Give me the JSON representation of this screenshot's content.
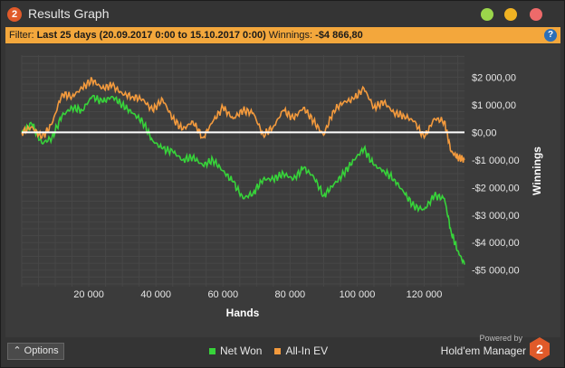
{
  "window": {
    "icon_text": "2",
    "title": "Results Graph"
  },
  "filter": {
    "label": "Filter:",
    "range": "Last 25 days (20.09.2017 0:00 to 15.10.2017 0:00)",
    "winnings_label": "Winnings:",
    "winnings_value": "-$4 866,80",
    "help_icon": "?"
  },
  "options_label": "Options",
  "powered_by": "Powered by",
  "brand": "Hold'em Manager",
  "brand_logo_text": "2",
  "colors": {
    "net_won": "#37d33a",
    "all_in_ev": "#f39a3d",
    "zero_line": "#ffffff",
    "grid": "#4e4e4e",
    "title_icon": "#e05a2a"
  },
  "chart_data": {
    "type": "line",
    "xlabel": "Hands",
    "ylabel": "Winnings",
    "x_ticks": [
      20000,
      40000,
      60000,
      80000,
      100000,
      120000
    ],
    "x_tick_labels": [
      "20 000",
      "40 000",
      "60 000",
      "80 000",
      "100 000",
      "120 000"
    ],
    "y_ticks": [
      2000,
      1000,
      0,
      -1000,
      -2000,
      -3000,
      -4000,
      -5000
    ],
    "y_tick_labels": [
      "$2 000,00",
      "$1 000,00",
      "$0,00",
      "-$1 000,00",
      "-$2 000,00",
      "-$3 000,00",
      "-$4 000,00",
      "-$5 000,00"
    ],
    "xlim": [
      0,
      132000
    ],
    "ylim": [
      -5600,
      2800
    ],
    "legend": [
      "Net Won",
      "All-In EV"
    ],
    "legend_position": "bottom",
    "series": [
      {
        "name": "Net Won",
        "x": [
          0,
          3000,
          6000,
          9000,
          12000,
          15000,
          18000,
          21000,
          24000,
          27000,
          30000,
          33000,
          36000,
          39000,
          42000,
          45000,
          48000,
          51000,
          54000,
          57000,
          60000,
          63000,
          66000,
          69000,
          72000,
          75000,
          78000,
          81000,
          84000,
          87000,
          90000,
          93000,
          96000,
          99000,
          102000,
          105000,
          108000,
          111000,
          114000,
          117000,
          120000,
          123000,
          126000,
          128000,
          130000,
          132000
        ],
        "y": [
          0,
          300,
          -400,
          -200,
          600,
          900,
          800,
          1300,
          1100,
          1300,
          1000,
          700,
          400,
          -300,
          -600,
          -700,
          -1000,
          -900,
          -1200,
          -1000,
          -1400,
          -1800,
          -2400,
          -2200,
          -1700,
          -1700,
          -1500,
          -1700,
          -1300,
          -1600,
          -2300,
          -1900,
          -1500,
          -1000,
          -600,
          -1200,
          -1400,
          -1700,
          -2200,
          -2700,
          -2800,
          -2300,
          -2400,
          -3600,
          -4300,
          -4800
        ]
      },
      {
        "name": "All-In EV",
        "x": [
          0,
          3000,
          6000,
          9000,
          12000,
          15000,
          18000,
          21000,
          24000,
          27000,
          30000,
          33000,
          36000,
          39000,
          42000,
          45000,
          48000,
          51000,
          54000,
          57000,
          60000,
          63000,
          66000,
          69000,
          72000,
          75000,
          78000,
          81000,
          84000,
          87000,
          90000,
          93000,
          96000,
          99000,
          102000,
          105000,
          108000,
          111000,
          114000,
          117000,
          120000,
          123000,
          126000,
          128000,
          130000,
          132000
        ],
        "y": [
          0,
          200,
          -200,
          300,
          1400,
          1300,
          1600,
          1900,
          1600,
          1700,
          1400,
          1300,
          1200,
          800,
          1200,
          500,
          100,
          400,
          -200,
          400,
          900,
          500,
          800,
          700,
          -100,
          200,
          800,
          500,
          900,
          400,
          -100,
          800,
          1100,
          1200,
          1600,
          900,
          1100,
          700,
          600,
          400,
          -200,
          500,
          400,
          -700,
          -900,
          -1000
        ]
      }
    ]
  }
}
